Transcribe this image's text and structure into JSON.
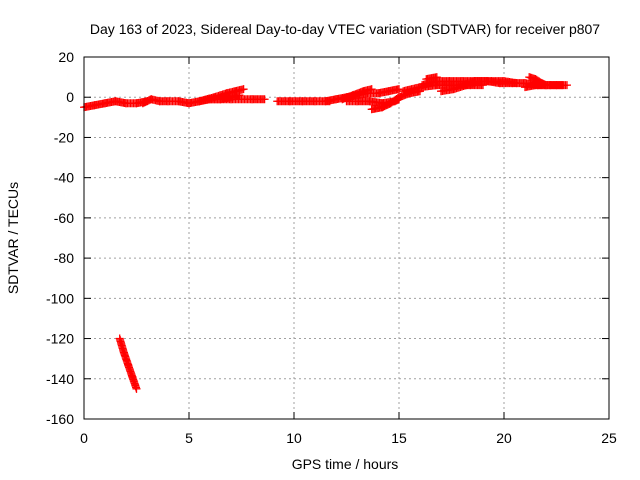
{
  "chart_data": {
    "type": "scatter",
    "title": "Day 163 of 2023, Sidereal Day-to-day VTEC variation (SDTVAR) for receiver p807",
    "xlabel": "GPS time / hours",
    "ylabel": "SDTVAR / TECUs",
    "xlim": [
      0,
      25
    ],
    "ylim": [
      -160,
      20
    ],
    "x_ticks": [
      0,
      5,
      10,
      15,
      20,
      25
    ],
    "y_ticks": [
      -160,
      -140,
      -120,
      -100,
      -80,
      -60,
      -40,
      -20,
      0,
      20
    ],
    "grid": true,
    "marker": "+",
    "series": [
      {
        "name": "SDTVAR",
        "color": "#ff0000",
        "segments": [
          [
            [
              0.0,
              -5
            ],
            [
              0.5,
              -4
            ],
            [
              1.0,
              -3
            ],
            [
              1.5,
              -2
            ],
            [
              2.0,
              -3
            ],
            [
              2.5,
              -3
            ],
            [
              3.0,
              -2
            ]
          ],
          [
            [
              2.8,
              -3
            ],
            [
              3.2,
              -1
            ],
            [
              3.6,
              -2
            ],
            [
              4.0,
              -2
            ],
            [
              4.5,
              -2
            ],
            [
              5.0,
              -3
            ],
            [
              5.5,
              -2
            ],
            [
              6.0,
              -1
            ],
            [
              6.5,
              -1
            ],
            [
              7.0,
              0
            ],
            [
              7.4,
              1
            ]
          ],
          [
            [
              5.5,
              -2
            ],
            [
              6.2,
              0
            ],
            [
              6.8,
              2
            ],
            [
              7.2,
              3
            ],
            [
              7.6,
              4
            ]
          ],
          [
            [
              6.0,
              -1
            ],
            [
              7.0,
              -1
            ],
            [
              8.0,
              -1
            ],
            [
              8.6,
              -1
            ]
          ],
          [
            [
              9.2,
              -2
            ],
            [
              9.8,
              -2
            ],
            [
              10.4,
              -2
            ],
            [
              11.0,
              -2
            ],
            [
              11.7,
              -2
            ]
          ],
          [
            [
              11.5,
              -2
            ],
            [
              12.0,
              -1
            ],
            [
              12.5,
              0
            ],
            [
              13.0,
              1
            ],
            [
              13.5,
              2
            ],
            [
              14.0,
              2
            ],
            [
              14.5,
              3
            ],
            [
              15.0,
              4
            ]
          ],
          [
            [
              12.3,
              -1
            ],
            [
              12.8,
              1
            ],
            [
              13.3,
              3
            ],
            [
              13.7,
              4
            ]
          ],
          [
            [
              12.5,
              -2
            ],
            [
              13.0,
              -2
            ],
            [
              13.6,
              -2
            ],
            [
              14.2,
              -3
            ],
            [
              14.8,
              -2
            ],
            [
              15.0,
              -1
            ]
          ],
          [
            [
              13.7,
              -6
            ],
            [
              14.2,
              -5
            ],
            [
              14.6,
              -3
            ],
            [
              15.0,
              0
            ]
          ],
          [
            [
              15.0,
              0
            ],
            [
              15.5,
              2
            ],
            [
              16.0,
              3
            ]
          ],
          [
            [
              15.2,
              3
            ],
            [
              16.0,
              5
            ],
            [
              16.8,
              6
            ],
            [
              17.6,
              6
            ],
            [
              18.4,
              6
            ],
            [
              19.0,
              6
            ]
          ],
          [
            [
              16.1,
              6
            ],
            [
              16.8,
              8
            ],
            [
              17.4,
              8
            ],
            [
              18.0,
              8
            ],
            [
              18.6,
              8
            ],
            [
              19.2,
              8
            ],
            [
              19.8,
              7
            ],
            [
              20.4,
              7
            ],
            [
              21.0,
              7
            ],
            [
              21.6,
              6
            ],
            [
              22.2,
              6
            ],
            [
              22.8,
              6
            ]
          ],
          [
            [
              16.3,
              9
            ],
            [
              16.8,
              10
            ]
          ],
          [
            [
              17.0,
              3
            ],
            [
              17.6,
              4
            ],
            [
              18.2,
              6
            ],
            [
              18.6,
              7
            ]
          ],
          [
            [
              18.0,
              6
            ],
            [
              18.6,
              8
            ],
            [
              19.4,
              8
            ],
            [
              20.0,
              8
            ],
            [
              20.6,
              7
            ]
          ],
          [
            [
              21.0,
              5
            ],
            [
              21.5,
              6
            ],
            [
              22.0,
              6
            ],
            [
              22.5,
              6
            ],
            [
              23.0,
              6
            ]
          ],
          [
            [
              21.2,
              10
            ],
            [
              21.5,
              9
            ],
            [
              21.8,
              7
            ],
            [
              22.0,
              6
            ]
          ],
          [
            [
              1.7,
              -120
            ],
            [
              1.9,
              -127
            ],
            [
              2.1,
              -133
            ],
            [
              2.3,
              -139
            ],
            [
              2.5,
              -145
            ]
          ]
        ]
      }
    ]
  }
}
